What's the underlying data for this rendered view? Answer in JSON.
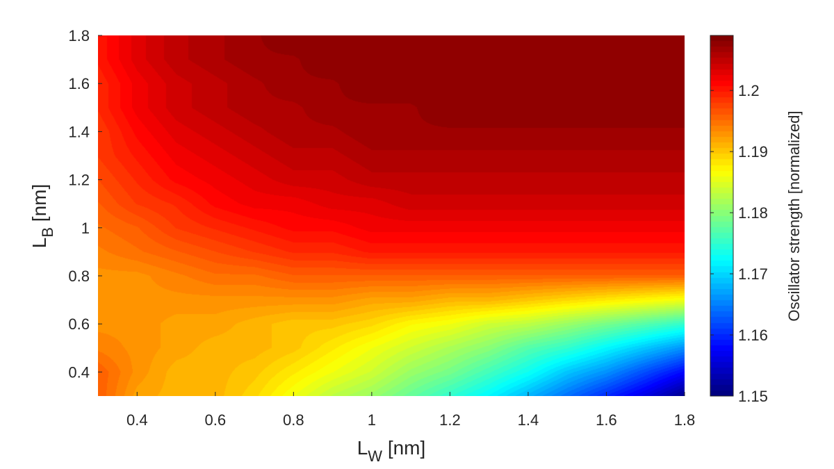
{
  "chart_data": {
    "type": "heatmap",
    "title": "",
    "xlabel": {
      "main": "L",
      "sub": "W",
      "unit": " [nm]"
    },
    "ylabel": {
      "main": "L",
      "sub": "B",
      "unit": " [nm]"
    },
    "colorbar_label": "Oscillator strength [normalized]",
    "colormap": "jet",
    "xlim": [
      0.3,
      1.8
    ],
    "ylim": [
      0.3,
      1.8
    ],
    "clim": [
      1.15,
      1.209
    ],
    "x_ticks": [
      0.4,
      0.6,
      0.8,
      1.0,
      1.2,
      1.4,
      1.6,
      1.8
    ],
    "x_tick_labels": [
      "0.4",
      "0.6",
      "0.8",
      "1",
      "1.2",
      "1.4",
      "1.6",
      "1.8"
    ],
    "y_ticks": [
      0.4,
      0.6,
      0.8,
      1.0,
      1.2,
      1.4,
      1.6,
      1.8
    ],
    "y_tick_labels": [
      "0.4",
      "0.6",
      "0.8",
      "1",
      "1.2",
      "1.4",
      "1.6",
      "1.8"
    ],
    "colorbar_ticks": [
      1.15,
      1.16,
      1.17,
      1.18,
      1.19,
      1.2
    ],
    "colorbar_tick_labels": [
      "1.15",
      "1.16",
      "1.17",
      "1.18",
      "1.19",
      "1.2"
    ],
    "x": [
      0.3,
      0.4,
      0.5,
      0.6,
      0.7,
      0.8,
      0.9,
      1.0,
      1.1,
      1.2,
      1.3,
      1.4,
      1.5,
      1.6,
      1.7,
      1.8
    ],
    "y": [
      0.3,
      0.4,
      0.5,
      0.6,
      0.7,
      0.8,
      0.9,
      1.0,
      1.1,
      1.2,
      1.3,
      1.4,
      1.5,
      1.6,
      1.7,
      1.8
    ],
    "z": [
      [
        1.196,
        1.192,
        1.191,
        1.191,
        1.189,
        1.186,
        1.183,
        1.181,
        1.178,
        1.175,
        1.172,
        1.168,
        1.164,
        1.16,
        1.156,
        1.151
      ],
      [
        1.196,
        1.193,
        1.191,
        1.191,
        1.19,
        1.188,
        1.186,
        1.184,
        1.181,
        1.179,
        1.176,
        1.173,
        1.169,
        1.166,
        1.162,
        1.158
      ],
      [
        1.194,
        1.193,
        1.192,
        1.191,
        1.191,
        1.19,
        1.188,
        1.186,
        1.184,
        1.182,
        1.18,
        1.177,
        1.175,
        1.172,
        1.169,
        1.166
      ],
      [
        1.193,
        1.193,
        1.192,
        1.192,
        1.191,
        1.19,
        1.19,
        1.189,
        1.187,
        1.186,
        1.184,
        1.183,
        1.181,
        1.179,
        1.177,
        1.175
      ],
      [
        1.193,
        1.193,
        1.193,
        1.193,
        1.193,
        1.193,
        1.193,
        1.192,
        1.192,
        1.191,
        1.191,
        1.19,
        1.189,
        1.188,
        1.187,
        1.186
      ],
      [
        1.193,
        1.193,
        1.194,
        1.195,
        1.195,
        1.196,
        1.196,
        1.196,
        1.196,
        1.196,
        1.196,
        1.196,
        1.196,
        1.196,
        1.196,
        1.196
      ],
      [
        1.194,
        1.195,
        1.196,
        1.197,
        1.198,
        1.199,
        1.199,
        1.2,
        1.2,
        1.2,
        1.2,
        1.2,
        1.2,
        1.2,
        1.2,
        1.2
      ],
      [
        1.195,
        1.196,
        1.198,
        1.199,
        1.2,
        1.201,
        1.201,
        1.202,
        1.202,
        1.202,
        1.202,
        1.202,
        1.202,
        1.202,
        1.202,
        1.202
      ],
      [
        1.196,
        1.198,
        1.199,
        1.201,
        1.202,
        1.202,
        1.203,
        1.203,
        1.204,
        1.204,
        1.204,
        1.204,
        1.204,
        1.204,
        1.204,
        1.204
      ],
      [
        1.197,
        1.199,
        1.201,
        1.202,
        1.203,
        1.204,
        1.204,
        1.205,
        1.205,
        1.205,
        1.205,
        1.205,
        1.205,
        1.205,
        1.205,
        1.205
      ],
      [
        1.198,
        1.2,
        1.202,
        1.203,
        1.204,
        1.205,
        1.205,
        1.206,
        1.206,
        1.206,
        1.206,
        1.206,
        1.206,
        1.206,
        1.206,
        1.206
      ],
      [
        1.198,
        1.201,
        1.203,
        1.204,
        1.205,
        1.206,
        1.206,
        1.207,
        1.207,
        1.207,
        1.207,
        1.207,
        1.207,
        1.207,
        1.207,
        1.207
      ],
      [
        1.199,
        1.202,
        1.204,
        1.205,
        1.206,
        1.206,
        1.207,
        1.207,
        1.207,
        1.208,
        1.208,
        1.208,
        1.208,
        1.208,
        1.208,
        1.208
      ],
      [
        1.199,
        1.202,
        1.204,
        1.205,
        1.206,
        1.207,
        1.207,
        1.208,
        1.208,
        1.208,
        1.208,
        1.208,
        1.208,
        1.208,
        1.208,
        1.208
      ],
      [
        1.2,
        1.203,
        1.205,
        1.206,
        1.207,
        1.207,
        1.208,
        1.208,
        1.208,
        1.208,
        1.208,
        1.208,
        1.208,
        1.208,
        1.208,
        1.208
      ],
      [
        1.2,
        1.203,
        1.205,
        1.206,
        1.207,
        1.208,
        1.208,
        1.208,
        1.208,
        1.208,
        1.208,
        1.208,
        1.208,
        1.208,
        1.208,
        1.208
      ]
    ]
  }
}
